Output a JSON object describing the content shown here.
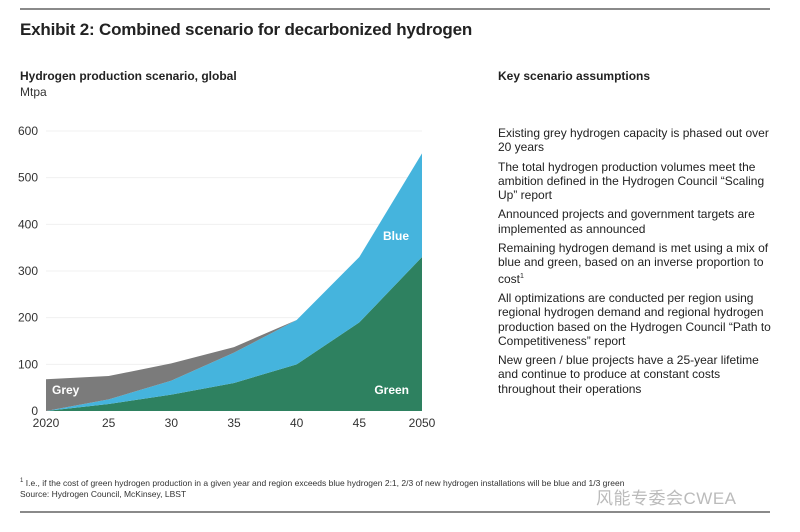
{
  "title": "Exhibit 2: Combined scenario for decarbonized hydrogen",
  "assumptions_heading": "Key scenario assumptions",
  "assumptions": [
    "Existing grey hydrogen capacity is phased out over 20 years",
    "The total hydrogen production volumes meet the ambition defined in the Hydrogen Council “Scaling Up” report",
    "Announced projects and government targets are implemented as announced",
    "Remaining hydrogen demand is met using a mix of blue and green, based on an inverse proportion to cost",
    "All optimizations are conducted per region using regional hydrogen demand and regional hydrogen production based on the Hydrogen Council “Path to Competitiveness” report",
    "New green / blue projects have a 25-year lifetime and continue to produce at constant costs throughout their operations"
  ],
  "footnote_marker": "1",
  "footnote": "I.e., if the cost of green hydrogen production in a given year and region exceeds blue hydrogen 2:1, 2/3 of new hydrogen installations will be blue and 1/3 green",
  "source": "Source: Hydrogen Council, McKinsey, LBST",
  "watermark": "风能专委会CWEA",
  "chart_data": {
    "type": "area",
    "stacked": true,
    "title": "Hydrogen production scenario, global",
    "ylabel": "Mtpa",
    "xlabel": "",
    "x": [
      2020,
      2025,
      2030,
      2035,
      2040,
      2045,
      2050
    ],
    "x_tick_labels": [
      "2020",
      "25",
      "30",
      "35",
      "40",
      "45",
      "2050"
    ],
    "y_ticks": [
      0,
      100,
      200,
      300,
      400,
      500,
      600
    ],
    "ylim": [
      0,
      600
    ],
    "grid": true,
    "series": [
      {
        "name": "Green",
        "color": "#2e8160",
        "values": [
          0,
          15,
          35,
          60,
          100,
          190,
          330
        ]
      },
      {
        "name": "Blue",
        "color": "#45b4dd",
        "values": [
          0,
          10,
          30,
          65,
          95,
          140,
          222
        ]
      },
      {
        "name": "Grey",
        "color": "#7b7b7b",
        "values": [
          68,
          50,
          37,
          12,
          0,
          0,
          0
        ]
      }
    ]
  }
}
